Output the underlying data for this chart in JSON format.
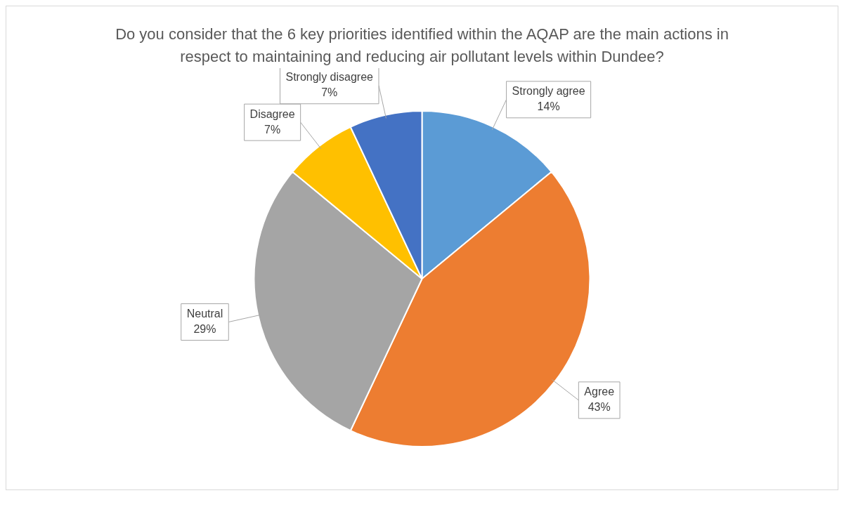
{
  "chart_data": {
    "type": "pie",
    "title": "Do you consider that the 6 key priorities identified within the AQAP are the main actions in respect to maintaining and reducing air pollutant levels within Dundee?",
    "categories": [
      "Strongly agree",
      "Agree",
      "Neutral",
      "Disagree",
      "Strongly disagree"
    ],
    "values": [
      14,
      43,
      29,
      7,
      7
    ],
    "colors": [
      "#5b9bd5",
      "#ed7d31",
      "#a5a5a5",
      "#ffc000",
      "#4472c4"
    ],
    "value_labels": [
      "14%",
      "43%",
      "29%",
      "7%",
      "7%"
    ]
  }
}
